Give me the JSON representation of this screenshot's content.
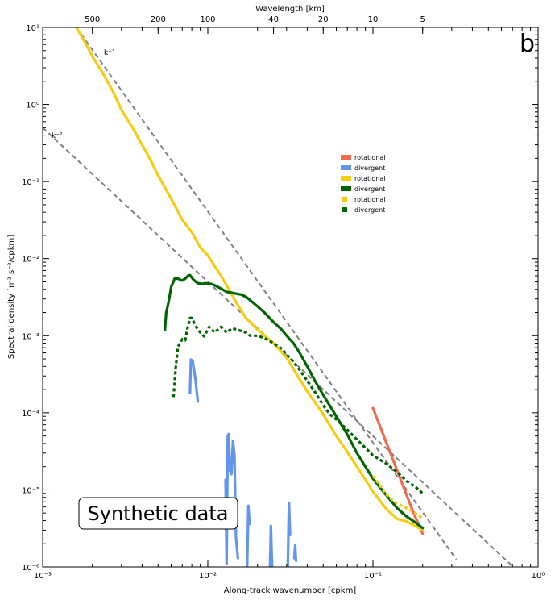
{
  "chart_data": {
    "type": "line",
    "panel_label": "b",
    "xlabel": "Along-track wavenumber  [cpkm]",
    "ylabel": "Spectral density  [m² s⁻²/cpkm]",
    "top_xlabel": "Wavelength [km]",
    "x_scale": "log",
    "y_scale": "log",
    "xlim": [
      0.001,
      1
    ],
    "ylim": [
      1e-06,
      10
    ],
    "x_ticks": [
      {
        "value": 0.001,
        "label": "10⁻³"
      },
      {
        "value": 0.01,
        "label": "10⁻²"
      },
      {
        "value": 0.1,
        "label": "10⁻¹"
      },
      {
        "value": 1,
        "label": "10⁰"
      }
    ],
    "y_ticks": [
      {
        "value": 1e-06,
        "label": "10⁻⁶"
      },
      {
        "value": 1e-05,
        "label": "10⁻⁵"
      },
      {
        "value": 0.0001,
        "label": "10⁻⁴"
      },
      {
        "value": 0.001,
        "label": "10⁻³"
      },
      {
        "value": 0.01,
        "label": "10⁻²"
      },
      {
        "value": 0.1,
        "label": "10⁻¹"
      },
      {
        "value": 1,
        "label": "10⁰"
      },
      {
        "value": 10,
        "label": "10¹"
      }
    ],
    "top_ticks": [
      {
        "value": 500,
        "label": "500"
      },
      {
        "value": 200,
        "label": "200"
      },
      {
        "value": 100,
        "label": "100"
      },
      {
        "value": 40,
        "label": "40"
      },
      {
        "value": 20,
        "label": "20"
      },
      {
        "value": 10,
        "label": "10"
      },
      {
        "value": 5,
        "label": "5"
      }
    ],
    "grid": false,
    "legend_position": "center-right",
    "annotation": "Synthetic data",
    "reference_lines": [
      {
        "label": "k⁻³",
        "x": [
          0.0016,
          0.32
        ],
        "y": [
          10,
          1.25e-06
        ]
      },
      {
        "label": "k⁻²",
        "x": [
          0.001,
          0.73
        ],
        "y": [
          0.5,
          9.4e-07
        ]
      }
    ],
    "series": [
      {
        "name": "rotational",
        "color": "#f46a4e",
        "style": "solid",
        "x": [
          0.1,
          0.12,
          0.14,
          0.16,
          0.18,
          0.2
        ],
        "y": [
          0.000115,
          4.2e-05,
          1.8e-05,
          8.5e-06,
          4.5e-06,
          2.7e-06
        ]
      },
      {
        "name": "divergent",
        "color": "#6495ed",
        "style": "solid",
        "segments": [
          {
            "x": [
              0.0078,
              0.0079,
              0.0081,
              0.0084,
              0.0087
            ],
            "y": [
              0.00018,
              0.00049,
              0.00047,
              0.00028,
              0.00014
            ]
          },
          {
            "x": [
              0.0128,
              0.013,
              0.0132,
              0.0134,
              0.0136,
              0.0139,
              0.0142,
              0.0145,
              0.0148,
              0.0152
            ],
            "y": [
              1.35e-05,
              1.1e-06,
              5e-05,
              5.3e-05,
              1.8e-05,
              1.6e-05,
              4.3e-05,
              2.8e-05,
              2.5e-06,
              1.3e-06
            ]
          },
          {
            "x": [
              0.0173,
              0.0176,
              0.0179
            ],
            "y": [
              1e-06,
              6.2e-06,
              3.6e-06
            ]
          },
          {
            "x": [
              0.0238,
              0.0241,
              0.0245
            ],
            "y": [
              1e-06,
              3.4e-06,
              1e-06
            ]
          },
          {
            "x": [
              0.0305,
              0.031,
              0.0315
            ],
            "y": [
              1e-06,
              6.8e-06,
              2.6e-06
            ]
          },
          {
            "x": [
              0.0334,
              0.0338,
              0.0342
            ],
            "y": [
              1.3e-06,
              1.9e-06,
              1.2e-06
            ]
          }
        ]
      },
      {
        "name": "rotational",
        "color": "#f5cc12",
        "style": "solid",
        "x": [
          0.0016,
          0.0018,
          0.002,
          0.0023,
          0.0027,
          0.003,
          0.0035,
          0.004,
          0.0045,
          0.005,
          0.006,
          0.007,
          0.008,
          0.009,
          0.01,
          0.011,
          0.012,
          0.013,
          0.015,
          0.017,
          0.02,
          0.025,
          0.03,
          0.035,
          0.04,
          0.05,
          0.06,
          0.07,
          0.08,
          0.1,
          0.12,
          0.14,
          0.16,
          0.18,
          0.2
        ],
        "y": [
          10,
          6.5,
          4.2,
          2.6,
          1.4,
          0.85,
          0.5,
          0.3,
          0.19,
          0.12,
          0.06,
          0.032,
          0.022,
          0.014,
          0.011,
          0.008,
          0.006,
          0.0045,
          0.0026,
          0.0017,
          0.0012,
          0.0008,
          0.00052,
          0.0003,
          0.00019,
          9.5e-05,
          5e-05,
          3.1e-05,
          2e-05,
          9.5e-06,
          5.7e-06,
          4.2e-06,
          3.9e-06,
          3.4e-06,
          3e-06
        ]
      },
      {
        "name": "divergent",
        "color": "#006400",
        "style": "solid",
        "x": [
          0.0055,
          0.0056,
          0.0058,
          0.006,
          0.0063,
          0.0066,
          0.007,
          0.0073,
          0.0076,
          0.0078,
          0.0082,
          0.0087,
          0.0092,
          0.0098,
          0.0105,
          0.011,
          0.012,
          0.013,
          0.014,
          0.015,
          0.016,
          0.017,
          0.018,
          0.02,
          0.022,
          0.025,
          0.028,
          0.03,
          0.033,
          0.036,
          0.04,
          0.045,
          0.05,
          0.06,
          0.07,
          0.08,
          0.09,
          0.1,
          0.12,
          0.14,
          0.16,
          0.18,
          0.2
        ],
        "y": [
          0.0012,
          0.002,
          0.0028,
          0.0043,
          0.0055,
          0.0055,
          0.0052,
          0.0055,
          0.006,
          0.0061,
          0.0053,
          0.0048,
          0.0047,
          0.0048,
          0.0047,
          0.0045,
          0.0041,
          0.0037,
          0.0036,
          0.0035,
          0.0034,
          0.0032,
          0.0029,
          0.0024,
          0.002,
          0.0015,
          0.0012,
          0.001,
          0.0008,
          0.0006,
          0.0004,
          0.00025,
          0.00017,
          9e-05,
          5.2e-05,
          3e-05,
          2e-05,
          1.4e-05,
          8.6e-06,
          5.8e-06,
          4.5e-06,
          3.8e-06,
          3.2e-06
        ]
      },
      {
        "name": "rotational",
        "color": "#f5cc12",
        "style": "dotted",
        "x": [
          0.1,
          0.11,
          0.12,
          0.13,
          0.14,
          0.15,
          0.16,
          0.17,
          0.18,
          0.19,
          0.2
        ],
        "y": [
          1.52e-05,
          1.15e-05,
          8.8e-06,
          7.5e-06,
          6.7e-06,
          6.2e-06,
          5.8e-06,
          5.4e-06,
          5e-06,
          4.6e-06,
          4.3e-06
        ]
      },
      {
        "name": "divergent",
        "color": "#006400",
        "style": "dotted",
        "x": [
          0.0062,
          0.0064,
          0.0066,
          0.007,
          0.0073,
          0.0075,
          0.0078,
          0.008,
          0.0085,
          0.009,
          0.0095,
          0.0102,
          0.011,
          0.012,
          0.013,
          0.014,
          0.015,
          0.016,
          0.017,
          0.018,
          0.02,
          0.022,
          0.025,
          0.028,
          0.03,
          0.033,
          0.036,
          0.04,
          0.045,
          0.05,
          0.055,
          0.06,
          0.07,
          0.08,
          0.09,
          0.1,
          0.12,
          0.14,
          0.16,
          0.18,
          0.2
        ],
        "y": [
          0.00016,
          0.0004,
          0.00072,
          0.0009,
          0.00087,
          0.0012,
          0.0017,
          0.0017,
          0.0013,
          0.0011,
          0.00098,
          0.0013,
          0.0011,
          0.0013,
          0.0011,
          0.00125,
          0.0012,
          0.00115,
          0.0011,
          0.001,
          0.001,
          0.00093,
          0.0008,
          0.00068,
          0.00057,
          0.00046,
          0.00036,
          0.00026,
          0.00018,
          0.000125,
          9.5e-05,
          8.2e-05,
          6e-05,
          4.5e-05,
          3.5e-05,
          2.8e-05,
          2.2e-05,
          1.7e-05,
          1.3e-05,
          1.1e-05,
          9e-06
        ]
      }
    ]
  }
}
